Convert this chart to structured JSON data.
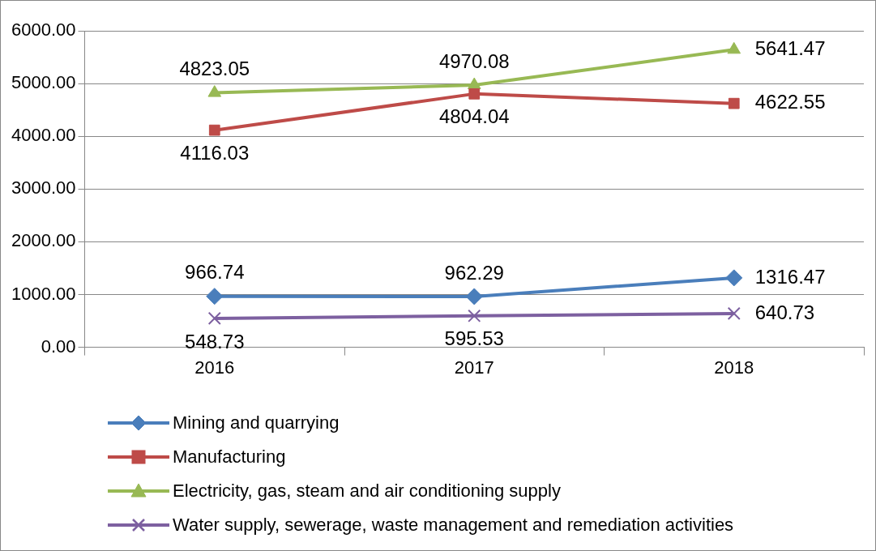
{
  "chart_data": {
    "type": "line",
    "categories": [
      "2016",
      "2017",
      "2018"
    ],
    "series": [
      {
        "name": "Mining and quarrying",
        "color": "#4a7ebb",
        "marker": "diamond",
        "values": [
          966.74,
          962.29,
          1316.47
        ]
      },
      {
        "name": "Manufacturing",
        "color": "#be4b48",
        "marker": "square",
        "values": [
          4116.03,
          4804.04,
          4622.55
        ]
      },
      {
        "name": "Electricity, gas, steam and air conditioning supply",
        "color": "#98b954",
        "marker": "triangle",
        "values": [
          4823.05,
          4970.08,
          5641.47
        ]
      },
      {
        "name": "Water supply, sewerage, waste management and remediation activities",
        "color": "#7d60a0",
        "marker": "cross",
        "values": [
          548.73,
          595.53,
          640.73
        ]
      }
    ],
    "ylim": [
      0,
      6000
    ],
    "yticks": [
      {
        "value": 0,
        "label": "0.00"
      },
      {
        "value": 1000,
        "label": "1000.00"
      },
      {
        "value": 2000,
        "label": "2000.00"
      },
      {
        "value": 3000,
        "label": "3000.00"
      },
      {
        "value": 4000,
        "label": "4000.00"
      },
      {
        "value": 5000,
        "label": "5000.00"
      },
      {
        "value": 6000,
        "label": "6000.00"
      }
    ],
    "grid": "y",
    "legend": "bottom",
    "data_labels": true,
    "line_style": "solid"
  }
}
